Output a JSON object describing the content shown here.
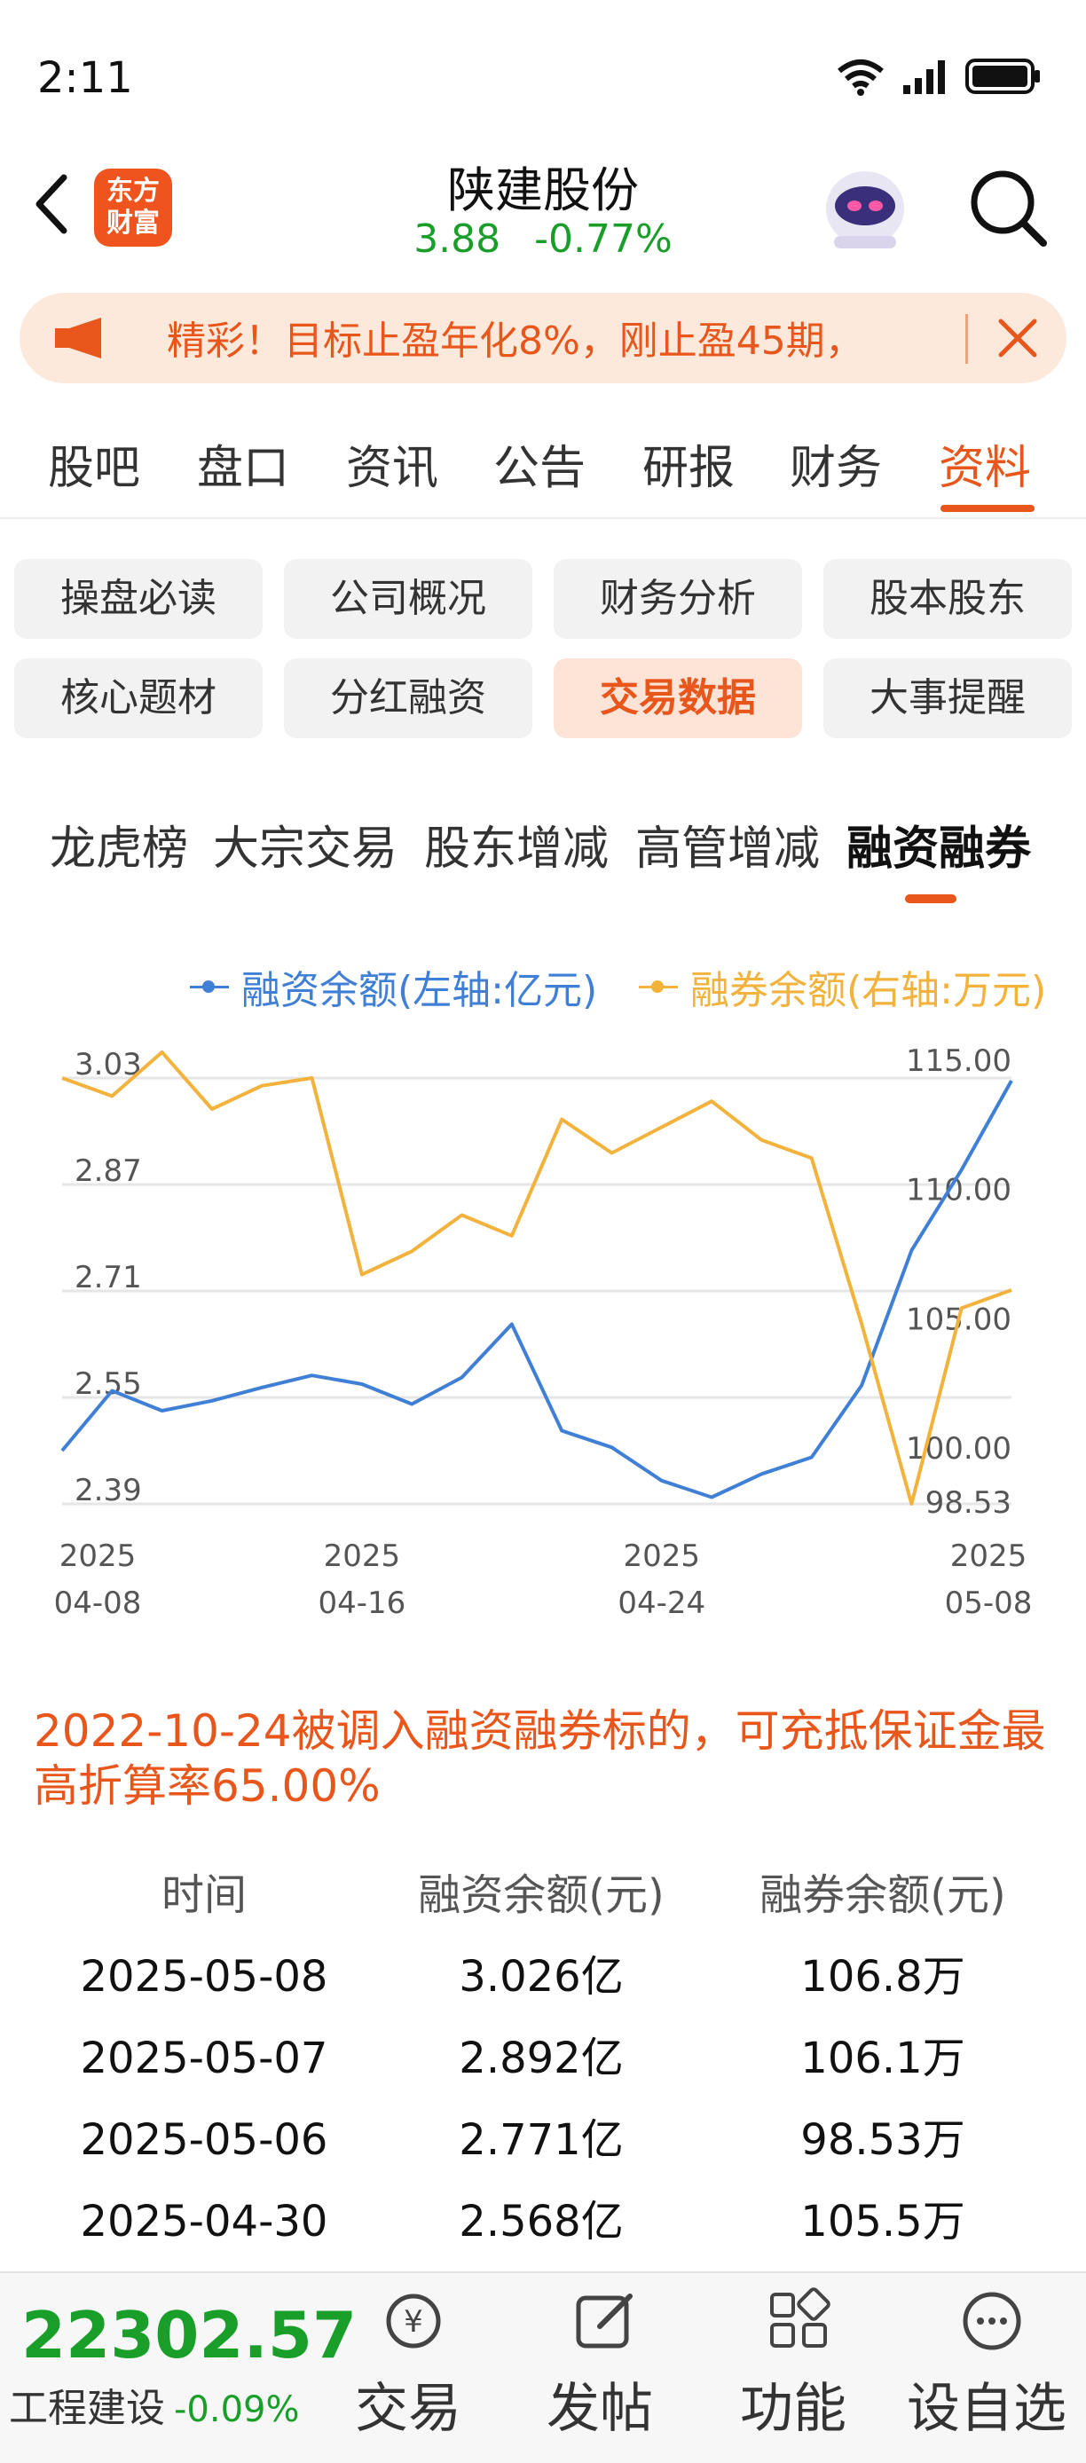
{
  "status_bar": {
    "time": "2:11"
  },
  "header": {
    "logo_line1": "东方",
    "logo_line2": "财富",
    "stock_name": "陕建股份",
    "price": "3.88",
    "change": "-0.77%"
  },
  "notice": {
    "text": "精彩！目标止盈年化8%，刚止盈45期，"
  },
  "tabs": [
    "股吧",
    "盘口",
    "资讯",
    "公告",
    "研报",
    "财务",
    "资料"
  ],
  "subtabs": [
    "操盘必读",
    "公司概况",
    "财务分析",
    "股本股东",
    "核心题材",
    "分红融资",
    "交易数据",
    "大事提醒"
  ],
  "chart_tabs": [
    "龙虎榜",
    "大宗交易",
    "股东增减",
    "高管增减",
    "融资融券"
  ],
  "colors": {
    "accent": "#e8561b",
    "up": "#1a9e2a",
    "blue_series": "#3f7fd6",
    "orange_series": "#f2b23c"
  },
  "chart_data": {
    "type": "line",
    "legend": [
      "融资余额(左轴:亿元)",
      "融券余额(右轴:万元)"
    ],
    "legend_position": "top-right",
    "x_tick_labels": [
      [
        "2025",
        "04-08"
      ],
      [
        "2025",
        "04-16"
      ],
      [
        "2025",
        "04-24"
      ],
      [
        "2025",
        "05-08"
      ]
    ],
    "y_left_ticks": [
      "3.03",
      "2.87",
      "2.71",
      "2.55",
      "2.39"
    ],
    "y_right_ticks": [
      "115.00",
      "110.00",
      "105.00",
      "100.00",
      "98.53"
    ],
    "y_left_range": [
      2.39,
      3.03
    ],
    "y_right_range": [
      98.53,
      115.0
    ],
    "grid": true,
    "x": [
      "04-08",
      "04-09",
      "04-10",
      "04-11",
      "04-14",
      "04-15",
      "04-16",
      "04-17",
      "04-18",
      "04-21",
      "04-22",
      "04-23",
      "04-24",
      "04-25",
      "04-28",
      "04-29",
      "04-30",
      "05-06",
      "05-07",
      "05-08"
    ],
    "series": [
      {
        "name": "融资余额(左轴:亿元)",
        "axis": "left",
        "values": [
          2.47,
          2.56,
          2.53,
          2.545,
          2.565,
          2.583,
          2.57,
          2.54,
          2.58,
          2.66,
          2.5,
          2.475,
          2.425,
          2.4,
          2.435,
          2.46,
          2.568,
          2.771,
          2.892,
          3.026
        ]
      },
      {
        "name": "融券余额(右轴:万元)",
        "axis": "right",
        "values": [
          115.0,
          114.3,
          116.0,
          113.8,
          114.7,
          115.0,
          107.4,
          108.3,
          109.7,
          108.9,
          113.4,
          112.1,
          113.1,
          114.1,
          112.6,
          111.9,
          105.5,
          98.53,
          106.1,
          106.8
        ]
      }
    ]
  },
  "margin_note": "2022-10-24被调入融资融券标的，可充抵保证金最高折算率65.00%",
  "table": {
    "headers": [
      "时间",
      "融资余额(元)",
      "融券余额(元)"
    ],
    "rows": [
      [
        "2025-05-08",
        "3.026亿",
        "106.8万"
      ],
      [
        "2025-05-07",
        "2.892亿",
        "106.1万"
      ],
      [
        "2025-05-06",
        "2.771亿",
        "98.53万"
      ],
      [
        "2025-04-30",
        "2.568亿",
        "105.5万"
      ]
    ]
  },
  "bottom_bar": {
    "index_value": "22302.57",
    "index_name": "工程建设",
    "index_change": "-0.09%",
    "nav": [
      "交易",
      "发帖",
      "功能",
      "设自选"
    ]
  }
}
